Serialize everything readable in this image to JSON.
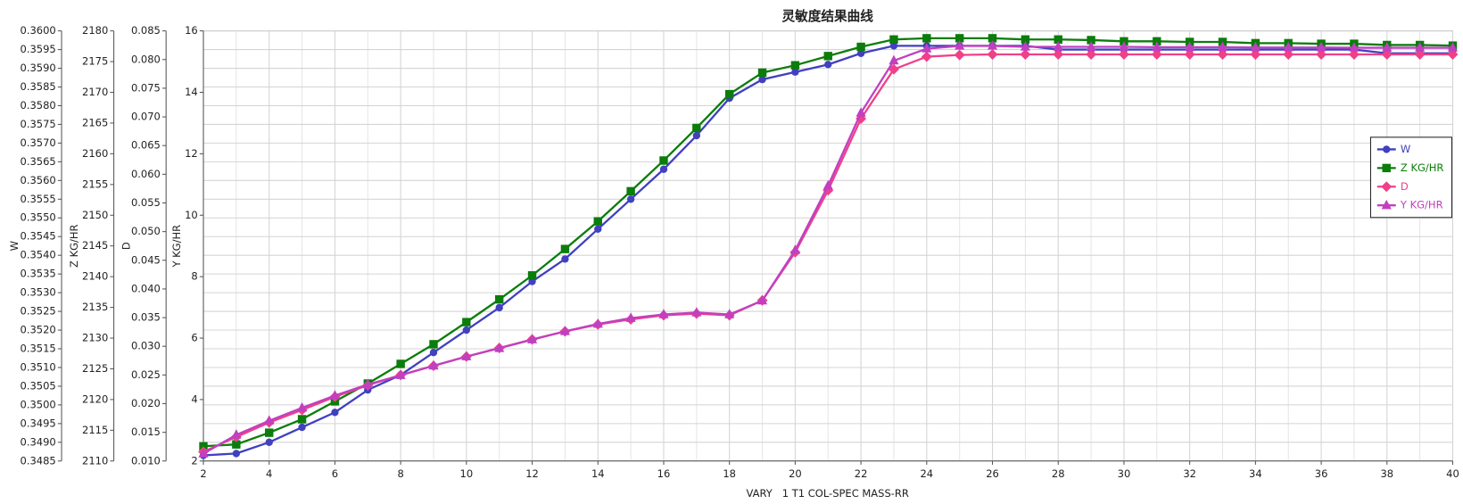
{
  "chart_data": {
    "type": "line",
    "title": "灵敏度结果曲线",
    "x_label": "VARY   1 T1 COL-SPEC MASS-RR",
    "x": [
      2,
      3,
      4,
      5,
      6,
      7,
      8,
      9,
      10,
      11,
      12,
      13,
      14,
      15,
      16,
      17,
      18,
      19,
      20,
      21,
      22,
      23,
      24,
      25,
      26,
      27,
      28,
      29,
      30,
      31,
      32,
      33,
      34,
      35,
      36,
      37,
      38,
      39,
      40
    ],
    "xlim": [
      2,
      40
    ],
    "xticks": [
      2,
      4,
      6,
      8,
      10,
      12,
      14,
      16,
      18,
      20,
      22,
      24,
      26,
      28,
      30,
      32,
      34,
      36,
      38,
      40
    ],
    "grid": true,
    "legend": "upper-right",
    "axes": [
      {
        "label": "W",
        "lim": [
          0.3485,
          0.36
        ],
        "ticks": [
          0.3485,
          {
            "value": 0.349,
            "label": "0.3490"
          },
          0.3495,
          {
            "value": 0.35,
            "label": "0.3500"
          },
          0.3505,
          {
            "value": 0.351,
            "label": "0.3510"
          },
          0.3515,
          {
            "value": 0.352,
            "label": "0.3520"
          },
          0.3525,
          {
            "value": 0.353,
            "label": "0.3530"
          },
          0.3535,
          {
            "value": 0.354,
            "label": "0.3540"
          },
          0.3545,
          {
            "value": 0.355,
            "label": "0.3550"
          },
          0.3555,
          {
            "value": 0.356,
            "label": "0.3560"
          },
          0.3565,
          {
            "value": 0.357,
            "label": "0.3570"
          },
          0.3575,
          {
            "value": 0.358,
            "label": "0.3580"
          },
          0.3585,
          {
            "value": 0.359,
            "label": "0.3590"
          },
          0.3595,
          {
            "value": 0.36,
            "label": "0.3600"
          }
        ]
      },
      {
        "label": "Z KG/HR",
        "lim": [
          2110,
          2180
        ],
        "ticks": [
          2110,
          2115,
          2120,
          2125,
          2130,
          2135,
          2140,
          2145,
          2150,
          2155,
          2160,
          2165,
          2170,
          2175,
          2180
        ]
      },
      {
        "label": "D",
        "lim": [
          0.01,
          0.085
        ],
        "ticks": [
          {
            "value": 0.01,
            "label": "0.010"
          },
          0.015,
          {
            "value": 0.02,
            "label": "0.020"
          },
          0.025,
          {
            "value": 0.03,
            "label": "0.030"
          },
          0.035,
          {
            "value": 0.04,
            "label": "0.040"
          },
          0.045,
          {
            "value": 0.05,
            "label": "0.050"
          },
          0.055,
          {
            "value": 0.06,
            "label": "0.060"
          },
          0.065,
          {
            "value": 0.07,
            "label": "0.070"
          },
          0.075,
          {
            "value": 0.08,
            "label": "0.080"
          },
          0.085
        ]
      },
      {
        "label": "Y KG/HR",
        "lim": [
          2,
          16
        ],
        "ticks": [
          2,
          4,
          6,
          8,
          10,
          12,
          14,
          16
        ]
      }
    ],
    "series": [
      {
        "name": "W",
        "color": "#4040c0",
        "marker": "circle",
        "axis": 0,
        "values": [
          0.34865,
          0.3487,
          0.349,
          0.3494,
          0.3498,
          0.3504,
          0.3508,
          0.3514,
          0.352,
          0.3526,
          0.3533,
          0.3539,
          0.3547,
          0.3555,
          0.3563,
          0.3572,
          0.3582,
          0.3587,
          0.3589,
          0.3591,
          0.3594,
          0.3596,
          0.3596,
          0.3596,
          0.3596,
          0.3596,
          0.3595,
          0.3595,
          0.3595,
          0.3595,
          0.3595,
          0.3595,
          0.3595,
          0.3595,
          0.3595,
          0.3595,
          0.3594,
          0.3594,
          0.3594
        ]
      },
      {
        "name": "Z KG/HR",
        "color": "#0a7d0a",
        "marker": "square",
        "axis": 1,
        "values": [
          2112.4,
          2112.7,
          2114.6,
          2116.8,
          2119.7,
          2122.6,
          2125.8,
          2129.0,
          2132.6,
          2136.3,
          2140.2,
          2144.5,
          2149.0,
          2153.9,
          2158.9,
          2164.2,
          2169.7,
          2173.2,
          2174.4,
          2175.9,
          2177.4,
          2178.6,
          2178.8,
          2178.8,
          2178.8,
          2178.6,
          2178.6,
          2178.5,
          2178.3,
          2178.3,
          2178.2,
          2178.2,
          2178.0,
          2178.0,
          2177.9,
          2177.9,
          2177.7,
          2177.7,
          2177.6
        ]
      },
      {
        "name": "D",
        "color": "#f0408a",
        "marker": "diamond",
        "axis": 2,
        "values": [
          0.0116,
          0.0142,
          0.0167,
          0.0189,
          0.0212,
          0.0232,
          0.025,
          0.0266,
          0.0282,
          0.0297,
          0.0312,
          0.0326,
          0.0338,
          0.0347,
          0.0354,
          0.0357,
          0.0354,
          0.038,
          0.0464,
          0.0572,
          0.0697,
          0.0783,
          0.0805,
          0.0808,
          0.0809,
          0.0809,
          0.0809,
          0.0809,
          0.0809,
          0.0809,
          0.0809,
          0.0809,
          0.0809,
          0.0809,
          0.0809,
          0.0809,
          0.0809,
          0.0809,
          0.0809
        ]
      },
      {
        "name": "Y KG/HR",
        "color": "#c040c0",
        "marker": "triangle",
        "axis": 3,
        "values": [
          2.24,
          2.85,
          3.31,
          3.73,
          4.13,
          4.49,
          4.79,
          5.1,
          5.4,
          5.67,
          5.95,
          6.22,
          6.46,
          6.65,
          6.77,
          6.83,
          6.77,
          7.22,
          8.86,
          10.96,
          13.33,
          15.03,
          15.42,
          15.51,
          15.51,
          15.48,
          15.48,
          15.48,
          15.48,
          15.47,
          15.47,
          15.47,
          15.46,
          15.46,
          15.46,
          15.45,
          15.45,
          15.45,
          15.45
        ]
      }
    ]
  }
}
